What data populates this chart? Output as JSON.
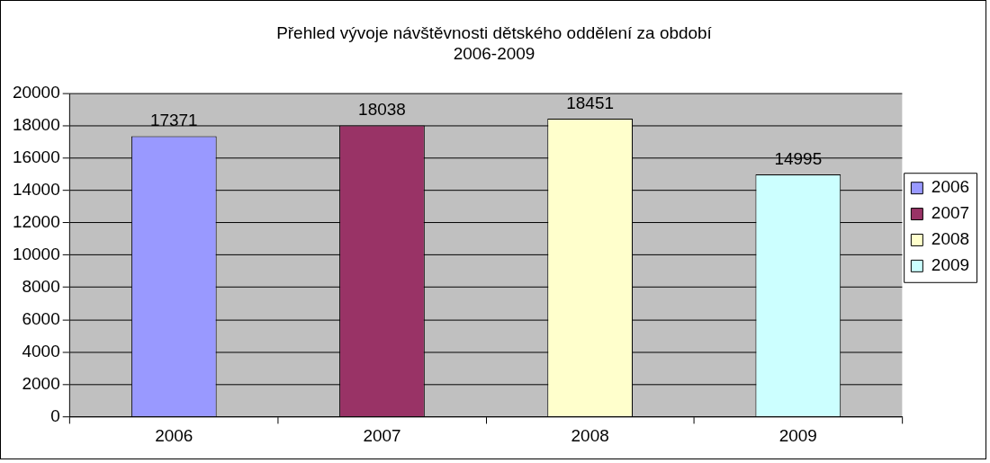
{
  "chart_data": {
    "type": "bar",
    "title": "Přehled vývoje návštěvnosti dětského oddělení za období 2006-2009",
    "categories": [
      "2006",
      "2007",
      "2008",
      "2009"
    ],
    "series": [
      {
        "name": "2006",
        "color": "#9999ff",
        "values": [
          17371,
          null,
          null,
          null
        ]
      },
      {
        "name": "2007",
        "color": "#993366",
        "values": [
          null,
          18038,
          null,
          null
        ]
      },
      {
        "name": "2008",
        "color": "#ffffcc",
        "values": [
          null,
          null,
          18451,
          null
        ]
      },
      {
        "name": "2009",
        "color": "#ccffff",
        "values": [
          null,
          null,
          null,
          14995
        ]
      }
    ],
    "ylim": [
      0,
      20000
    ],
    "yticks": [
      0,
      2000,
      4000,
      6000,
      8000,
      10000,
      12000,
      14000,
      16000,
      18000,
      20000
    ],
    "grid": "y",
    "legend": "right",
    "data_labels": true
  }
}
